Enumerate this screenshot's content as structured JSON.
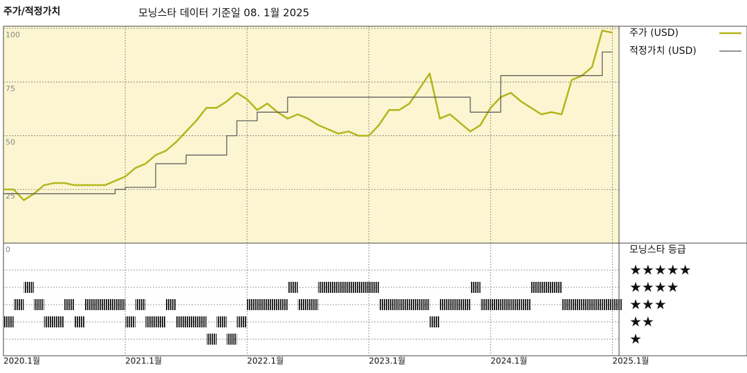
{
  "chart_data": {
    "type": "line",
    "title": "주가/적정가치",
    "subtitle": "모닝스타 데이터 기준일 08. 1월 2025",
    "x": [
      "2020-01",
      "2020-02",
      "2020-03",
      "2020-04",
      "2020-05",
      "2020-06",
      "2020-07",
      "2020-08",
      "2020-09",
      "2020-10",
      "2020-11",
      "2020-12",
      "2021-01",
      "2021-02",
      "2021-03",
      "2021-04",
      "2021-05",
      "2021-06",
      "2021-07",
      "2021-08",
      "2021-09",
      "2021-10",
      "2021-11",
      "2021-12",
      "2022-01",
      "2022-02",
      "2022-03",
      "2022-04",
      "2022-05",
      "2022-06",
      "2022-07",
      "2022-08",
      "2022-09",
      "2022-10",
      "2022-11",
      "2022-12",
      "2023-01",
      "2023-02",
      "2023-03",
      "2023-04",
      "2023-05",
      "2023-06",
      "2023-07",
      "2023-08",
      "2023-09",
      "2023-10",
      "2023-11",
      "2023-12",
      "2024-01",
      "2024-02",
      "2024-03",
      "2024-04",
      "2024-05",
      "2024-06",
      "2024-07",
      "2024-08",
      "2024-09",
      "2024-10",
      "2024-11",
      "2024-12",
      "2025-01"
    ],
    "series": [
      {
        "name": "주가 (USD)",
        "color": "#b3b51c",
        "step": false,
        "values": [
          25,
          25,
          20,
          23,
          27,
          28,
          28,
          27,
          27,
          27,
          27,
          29,
          31,
          35,
          37,
          41,
          43,
          47,
          52,
          57,
          63,
          63,
          66,
          70,
          67,
          62,
          65,
          61,
          58,
          60,
          58,
          55,
          53,
          51,
          52,
          50,
          50,
          55,
          62,
          62,
          65,
          72,
          79,
          58,
          60,
          56,
          52,
          55,
          63,
          68,
          70,
          66,
          63,
          60,
          61,
          60,
          76,
          78,
          82,
          99,
          98
        ]
      },
      {
        "name": "적정가치 (USD)",
        "color": "#555555",
        "step": true,
        "values": [
          23,
          23,
          23,
          23,
          23,
          23,
          23,
          23,
          23,
          23,
          23,
          25,
          26,
          26,
          26,
          37,
          37,
          37,
          41,
          41,
          41,
          41,
          50,
          57,
          57,
          61,
          61,
          61,
          68,
          68,
          68,
          68,
          68,
          68,
          68,
          68,
          68,
          68,
          68,
          68,
          68,
          68,
          68,
          68,
          68,
          68,
          61,
          61,
          61,
          78,
          78,
          78,
          78,
          78,
          78,
          78,
          78,
          78,
          78,
          89,
          89
        ]
      }
    ],
    "xlim": [
      "2020-01",
      "2025-02"
    ],
    "xticks": [
      {
        "value": "2020-01",
        "label": "2020.1월"
      },
      {
        "value": "2021-01",
        "label": "2021.1월"
      },
      {
        "value": "2022-01",
        "label": "2022.1월"
      },
      {
        "value": "2023-01",
        "label": "2023.1월"
      },
      {
        "value": "2024-01",
        "label": "2024.1월"
      },
      {
        "value": "2025-01",
        "label": "2025.1월"
      }
    ],
    "ylim": [
      0,
      101
    ],
    "yticks": [
      0,
      25,
      50,
      75,
      100
    ],
    "grid": true,
    "ratings": {
      "title": "모닝스타 등급",
      "levels": [
        {
          "value": 5,
          "label": "★★★★★"
        },
        {
          "value": 4,
          "label": "★★★★"
        },
        {
          "value": 3,
          "label": "★★★"
        },
        {
          "value": 2,
          "label": "★★"
        },
        {
          "value": 1,
          "label": "★"
        }
      ],
      "values": [
        2,
        3,
        4,
        3,
        2,
        2,
        3,
        2,
        3,
        3,
        3,
        3,
        2,
        3,
        2,
        2,
        3,
        2,
        2,
        2,
        1,
        2,
        1,
        2,
        3,
        3,
        3,
        3,
        4,
        3,
        3,
        4,
        4,
        4,
        4,
        4,
        4,
        3,
        3,
        3,
        3,
        3,
        2,
        3,
        3,
        3,
        4,
        3,
        3,
        3,
        3,
        3,
        4,
        4,
        4,
        3,
        3,
        3,
        3,
        3,
        3
      ]
    }
  }
}
